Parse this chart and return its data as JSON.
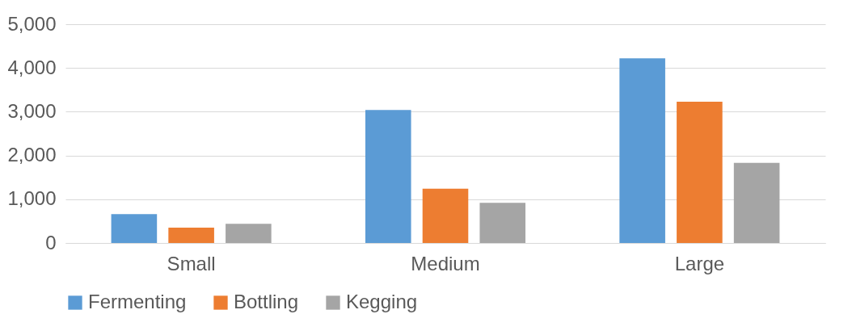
{
  "chart_data": {
    "type": "bar",
    "categories": [
      "Small",
      "Medium",
      "Large"
    ],
    "series": [
      {
        "name": "Fermenting",
        "color": "#5b9bd5",
        "values": [
          660,
          3040,
          4220
        ]
      },
      {
        "name": "Bottling",
        "color": "#ed7d31",
        "values": [
          350,
          1240,
          3230
        ]
      },
      {
        "name": "Kegging",
        "color": "#a5a5a5",
        "values": [
          440,
          920,
          1830
        ]
      }
    ],
    "ylim": [
      0,
      5000
    ],
    "yticks": [
      {
        "value": 0,
        "label": "0"
      },
      {
        "value": 1000,
        "label": "1,000"
      },
      {
        "value": 2000,
        "label": "2,000"
      },
      {
        "value": 3000,
        "label": "3,000"
      },
      {
        "value": 4000,
        "label": "4,000"
      },
      {
        "value": 5000,
        "label": "5,000"
      }
    ],
    "grid": "y",
    "legend": "bottom"
  }
}
